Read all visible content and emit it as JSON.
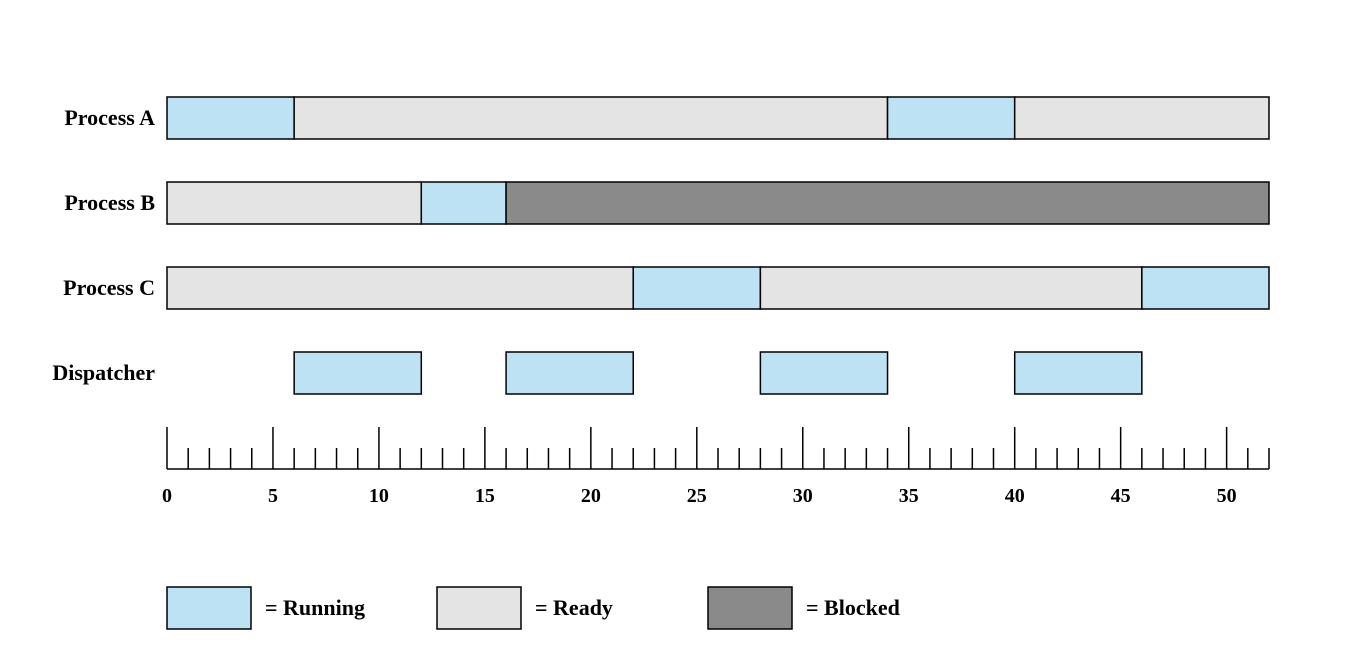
{
  "chart_data": {
    "type": "timeline",
    "x_unit": "time",
    "xlim": [
      0,
      52
    ],
    "major_tick_step": 5,
    "minor_tick_step": 1,
    "tick_labels": [
      "0",
      "5",
      "10",
      "15",
      "20",
      "25",
      "30",
      "35",
      "40",
      "45",
      "50"
    ],
    "states": {
      "running": {
        "label": "= Running",
        "color": "#bde2f4"
      },
      "ready": {
        "label": "= Ready",
        "color": "#e4e4e4"
      },
      "blocked": {
        "label": "= Blocked",
        "color": "#8a8a8a"
      }
    },
    "rows": [
      {
        "name": "Process A",
        "segments": [
          {
            "start": 0,
            "end": 6,
            "state": "running"
          },
          {
            "start": 6,
            "end": 34,
            "state": "ready"
          },
          {
            "start": 34,
            "end": 40,
            "state": "running"
          },
          {
            "start": 40,
            "end": 52,
            "state": "ready"
          }
        ]
      },
      {
        "name": "Process B",
        "segments": [
          {
            "start": 0,
            "end": 12,
            "state": "ready"
          },
          {
            "start": 12,
            "end": 16,
            "state": "running"
          },
          {
            "start": 16,
            "end": 52,
            "state": "blocked"
          }
        ]
      },
      {
        "name": "Process C",
        "segments": [
          {
            "start": 0,
            "end": 22,
            "state": "ready"
          },
          {
            "start": 22,
            "end": 28,
            "state": "running"
          },
          {
            "start": 28,
            "end": 46,
            "state": "ready"
          },
          {
            "start": 46,
            "end": 52,
            "state": "running"
          }
        ]
      },
      {
        "name": "Dispatcher",
        "segments": [
          {
            "start": 6,
            "end": 12,
            "state": "running"
          },
          {
            "start": 16,
            "end": 22,
            "state": "running"
          },
          {
            "start": 28,
            "end": 34,
            "state": "running"
          },
          {
            "start": 40,
            "end": 46,
            "state": "running"
          }
        ]
      }
    ],
    "legend": [
      "running",
      "ready",
      "blocked"
    ]
  }
}
